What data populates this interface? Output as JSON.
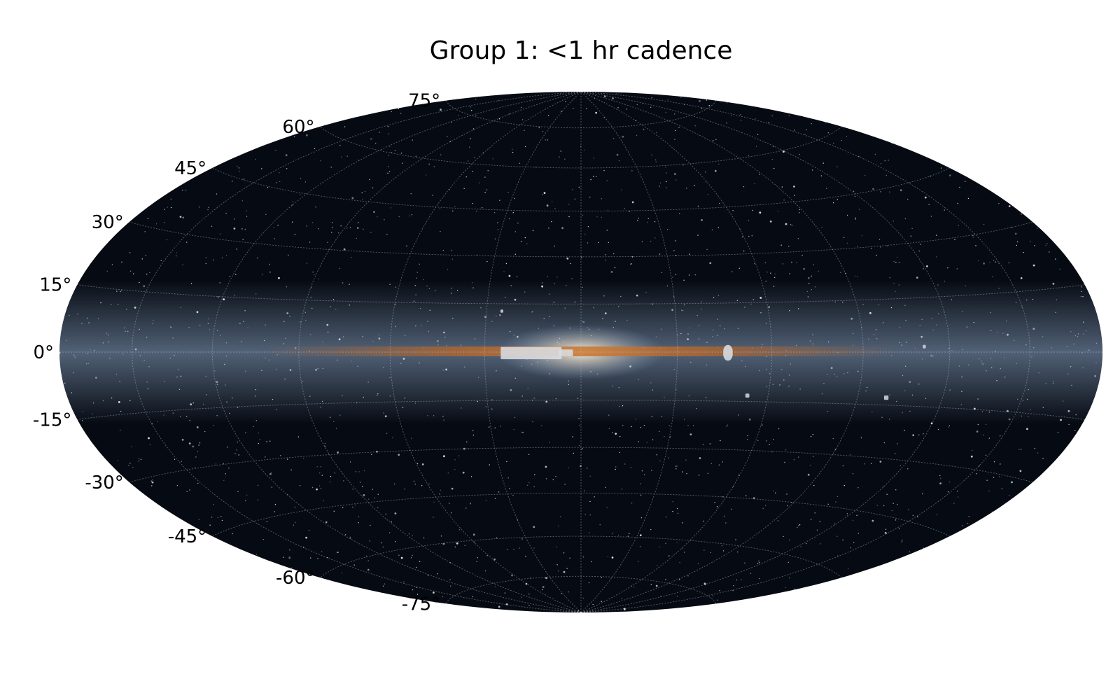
{
  "title": "Group 1: <1 hr cadence",
  "projection": "hammer-aitoff",
  "frame": "galactic",
  "graticule": {
    "visible": true,
    "latitude_step_deg": 15,
    "longitude_step_deg": 30,
    "color": "#bfc7d0"
  },
  "latitude_labels": [
    {
      "lat": 75,
      "text": "75°"
    },
    {
      "lat": 60,
      "text": "60°"
    },
    {
      "lat": 45,
      "text": "45°"
    },
    {
      "lat": 30,
      "text": "30°"
    },
    {
      "lat": 15,
      "text": "15°"
    },
    {
      "lat": 0,
      "text": "0°"
    },
    {
      "lat": -15,
      "text": "-15°"
    },
    {
      "lat": -30,
      "text": "-30°"
    },
    {
      "lat": -45,
      "text": "-45°"
    },
    {
      "lat": -60,
      "text": "-60°"
    },
    {
      "lat": -75,
      "text": "-75°"
    }
  ],
  "background": {
    "sky_color": "#060a12",
    "galactic_plane_glow": "#8fa8c8",
    "dust_lane_color": "#b8662a",
    "bulge_color": "#fff4e0"
  },
  "survey_fields": [
    {
      "name": "bulge-strip",
      "lon_min": 6,
      "lon_max": 25,
      "lat_min": -2.2,
      "lat_max": 1.6,
      "color": "#d9dde2"
    },
    {
      "name": "bulge-strip-core",
      "lon_min": 2.5,
      "lon_max": 7,
      "lat_min": -1.3,
      "lat_max": 0.8,
      "color": "#d9dde2"
    },
    {
      "name": "disk-field-west",
      "lon_min": -47.5,
      "lon_max": -44.5,
      "lat_min": -2.6,
      "lat_max": 2.2,
      "color": "#d9dde2"
    },
    {
      "name": "high-lat-north",
      "lon_min": 24.6,
      "lon_max": 25.6,
      "lat_min": 12.2,
      "lat_max": 13.2,
      "color": "#d0d4da"
    },
    {
      "name": "south-pair",
      "lon_min": -54,
      "lon_max": -52.5,
      "lat_min": -13.8,
      "lat_max": -12.6,
      "color": "#d0d4da"
    },
    {
      "name": "far-west-south",
      "lon_min": -101,
      "lon_max": -99,
      "lat_min": -13.5,
      "lat_max": -12.3,
      "color": "#d0d4da"
    },
    {
      "name": "far-west-plane",
      "lon_min": -111.5,
      "lon_max": -110.5,
      "lat_min": 1,
      "lat_max": 2,
      "color": "#d0d4da"
    }
  ]
}
